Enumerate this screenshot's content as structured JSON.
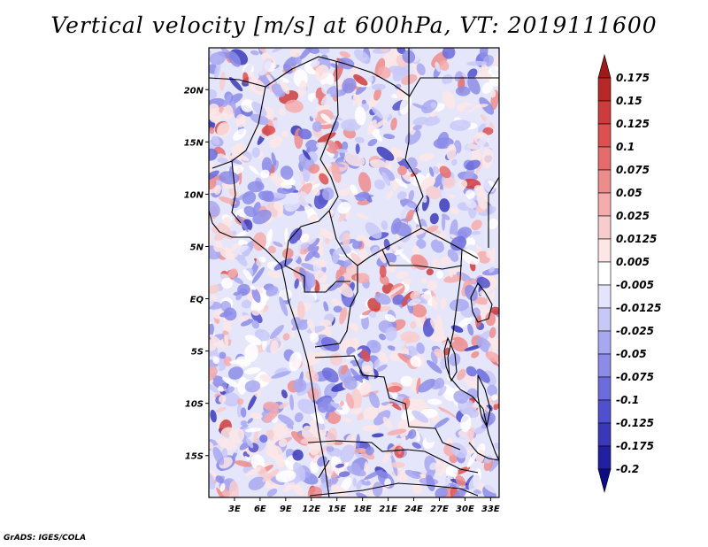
{
  "title": "Vertical velocity [m/s] at 600hPa, VT: 2019111600",
  "footer": "GrADS: IGES/COLA",
  "map": {
    "region": "Central Africa",
    "field": "vertical velocity",
    "level": "600hPa",
    "units": "m/s",
    "lon_range": [
      0,
      34
    ],
    "lat_range": [
      -19,
      24
    ],
    "lon_ticks": [
      {
        "value": 3,
        "label": "3E"
      },
      {
        "value": 6,
        "label": "6E"
      },
      {
        "value": 9,
        "label": "9E"
      },
      {
        "value": 12,
        "label": "12E"
      },
      {
        "value": 15,
        "label": "15E"
      },
      {
        "value": 18,
        "label": "18E"
      },
      {
        "value": 21,
        "label": "21E"
      },
      {
        "value": 24,
        "label": "24E"
      },
      {
        "value": 27,
        "label": "27E"
      },
      {
        "value": 30,
        "label": "30E"
      },
      {
        "value": 33,
        "label": "33E"
      }
    ],
    "lat_ticks": [
      {
        "value": 20,
        "label": "20N"
      },
      {
        "value": 15,
        "label": "15N"
      },
      {
        "value": 10,
        "label": "10N"
      },
      {
        "value": 5,
        "label": "5N"
      },
      {
        "value": 0,
        "label": "EQ"
      },
      {
        "value": -5,
        "label": "5S"
      },
      {
        "value": -10,
        "label": "10S"
      },
      {
        "value": -15,
        "label": "15S"
      }
    ]
  },
  "colorbar": {
    "labels": [
      "0.175",
      "0.15",
      "0.125",
      "0.1",
      "0.075",
      "0.05",
      "0.025",
      "0.0125",
      "0.005",
      "-0.005",
      "-0.0125",
      "-0.025",
      "-0.05",
      "-0.075",
      "-0.1",
      "-0.125",
      "-0.175",
      "-0.2"
    ],
    "colors": [
      "#a01818",
      "#b82828",
      "#cc3c3c",
      "#dc5050",
      "#e46c6c",
      "#ec8c8c",
      "#f4acac",
      "#f8cccc",
      "#fce6e6",
      "#ffffff",
      "#e4e4fc",
      "#c8c8f8",
      "#a8a8f0",
      "#8c8ce8",
      "#6c6cdc",
      "#5050cc",
      "#3838b8",
      "#2020a0",
      "#0c0c84"
    ]
  }
}
